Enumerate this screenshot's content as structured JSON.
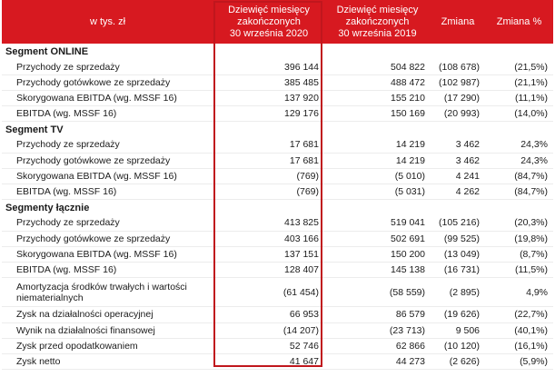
{
  "header": {
    "lead": "w tys. zł",
    "col1": [
      "Dziewięć miesięcy",
      "zakończonych",
      "30 września 2020"
    ],
    "col2": [
      "Dziewięć miesięcy",
      "zakończonych",
      "30 września 2019"
    ],
    "col3": "Zmiana",
    "col4": "Zmiana %"
  },
  "sections": [
    {
      "title": "Segment ONLINE",
      "rows": [
        {
          "label": "Przychody ze sprzedaży",
          "v2020": "396 144",
          "v2019": "504 822",
          "change": "(108 678)",
          "pct": "(21,5%)"
        },
        {
          "label": "Przychody gotówkowe ze sprzedaży",
          "v2020": "385 485",
          "v2019": "488 472",
          "change": "(102 987)",
          "pct": "(21,1%)"
        },
        {
          "label": "Skorygowana EBITDA (wg. MSSF 16)",
          "v2020": "137 920",
          "v2019": "155 210",
          "change": "(17 290)",
          "pct": "(11,1%)"
        },
        {
          "label": "EBITDA (wg. MSSF 16)",
          "v2020": "129 176",
          "v2019": "150 169",
          "change": "(20 993)",
          "pct": "(14,0%)"
        }
      ]
    },
    {
      "title": "Segment TV",
      "rows": [
        {
          "label": "Przychody ze sprzedaży",
          "v2020": "17 681",
          "v2019": "14 219",
          "change": "3 462",
          "pct": "24,3%"
        },
        {
          "label": "Przychody gotówkowe ze sprzedaży",
          "v2020": "17 681",
          "v2019": "14 219",
          "change": "3 462",
          "pct": "24,3%"
        },
        {
          "label": "Skorygowana EBITDA (wg. MSSF 16)",
          "v2020": "(769)",
          "v2019": "(5 010)",
          "change": "4 241",
          "pct": "(84,7%)"
        },
        {
          "label": "EBITDA (wg. MSSF 16)",
          "v2020": "(769)",
          "v2019": "(5 031)",
          "change": "4 262",
          "pct": "(84,7%)"
        }
      ]
    },
    {
      "title": "Segmenty łącznie",
      "rows": [
        {
          "label": "Przychody ze sprzedaży",
          "v2020": "413 825",
          "v2019": "519 041",
          "change": "(105 216)",
          "pct": "(20,3%)"
        },
        {
          "label": "Przychody gotówkowe ze sprzedaży",
          "v2020": "403 166",
          "v2019": "502 691",
          "change": "(99 525)",
          "pct": "(19,8%)"
        },
        {
          "label": "Skorygowana EBITDA (wg. MSSF 16)",
          "v2020": "137 151",
          "v2019": "150 200",
          "change": "(13 049)",
          "pct": "(8,7%)"
        },
        {
          "label": "EBITDA (wg. MSSF 16)",
          "v2020": "128 407",
          "v2019": "145 138",
          "change": "(16 731)",
          "pct": "(11,5%)"
        },
        {
          "label": "Amortyzacja środków trwałych i wartości niematerialnych",
          "v2020": "(61 454)",
          "v2019": "(58 559)",
          "change": "(2 895)",
          "pct": "4,9%"
        },
        {
          "label": "Zysk na działalności operacyjnej",
          "v2020": "66 953",
          "v2019": "86 579",
          "change": "(19 626)",
          "pct": "(22,7%)"
        },
        {
          "label": "Wynik na działalności finansowej",
          "v2020": "(14 207)",
          "v2019": "(23 713)",
          "change": "9 506",
          "pct": "(40,1%)"
        },
        {
          "label": "Zysk przed opodatkowaniem",
          "v2020": "52 746",
          "v2019": "62 866",
          "change": "(10 120)",
          "pct": "(16,1%)"
        },
        {
          "label": "Zysk netto",
          "v2020": "41 647",
          "v2019": "44 273",
          "change": "(2 626)",
          "pct": "(5,9%)"
        }
      ]
    }
  ],
  "colors": {
    "header_bg": "#d71920",
    "highlight_border": "#c0161d"
  }
}
